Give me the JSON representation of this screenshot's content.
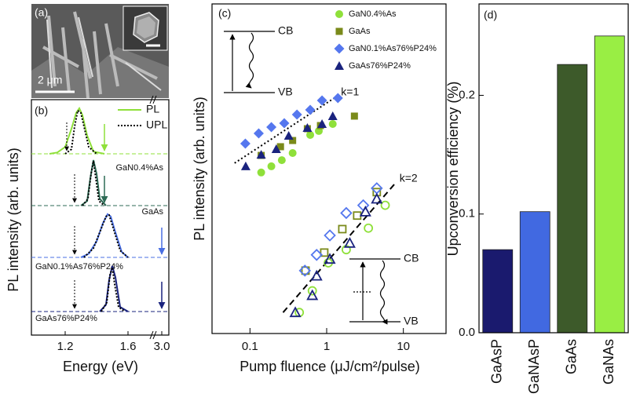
{
  "image": {
    "panel": "(a)",
    "scale": "2 μm"
  },
  "chart_data": [
    {
      "type": "spectra",
      "panel": "(b)",
      "xlabel": "Energy (eV)",
      "ylabel": "PL intensity (arb. units)",
      "xlim": [
        1.0,
        1.75
      ],
      "xlim_break": [
        2.9,
        3.1
      ],
      "xticks": [
        1.2,
        1.6,
        {
          "value": 3,
          "label": "3.0"
        }
      ],
      "legend": [
        {
          "name": "PL",
          "color": "#8fe03a",
          "style": "solid"
        },
        {
          "name": "UPL",
          "color": "#000000",
          "style": "dotted"
        }
      ],
      "samples": [
        {
          "name": "GaN0.4%As",
          "color": "#8fe03a",
          "pl": {
            "x": [
              1.1,
              1.15,
              1.2,
              1.24,
              1.27,
              1.29,
              1.31,
              1.34,
              1.38,
              1.45
            ],
            "values": [
              0,
              0.03,
              0.15,
              0.55,
              0.9,
              1.0,
              0.85,
              0.4,
              0.05,
              0
            ]
          },
          "upl": {
            "x": [
              1.2,
              1.24,
              1.26,
              1.28,
              1.3,
              1.32,
              1.35,
              1.4
            ],
            "values": [
              0,
              0.1,
              0.6,
              0.95,
              0.9,
              0.6,
              0.15,
              0
            ]
          },
          "excitation_upl": 1.21,
          "excitation_pl": 1.45
        },
        {
          "name": "GaAs",
          "color": "#2e6b55",
          "pl": {
            "x": [
              1.3,
              1.34,
              1.36,
              1.38,
              1.4,
              1.42,
              1.46
            ],
            "values": [
              0,
              0.1,
              0.6,
              1.0,
              0.7,
              0.15,
              0
            ]
          },
          "upl": {
            "x": [
              1.31,
              1.345,
              1.365,
              1.38,
              1.395,
              1.415,
              1.45
            ],
            "values": [
              0,
              0.15,
              0.7,
              0.98,
              0.6,
              0.1,
              0
            ]
          },
          "excitation_upl": 1.26,
          "excitation_pl": 1.45
        },
        {
          "name": "GaN0.1%As76%P24%",
          "color": "#4a6fe3",
          "pl": {
            "x": [
              1.3,
              1.35,
              1.4,
              1.44,
              1.47,
              1.49,
              1.52,
              1.56,
              1.6
            ],
            "values": [
              0,
              0.08,
              0.35,
              0.75,
              0.95,
              0.9,
              0.55,
              0.12,
              0
            ]
          },
          "upl": {
            "x": [
              1.32,
              1.38,
              1.42,
              1.46,
              1.48,
              1.51,
              1.55,
              1.6
            ],
            "values": [
              0,
              0.2,
              0.55,
              0.9,
              0.93,
              0.6,
              0.15,
              0
            ]
          },
          "excitation_upl": 1.26,
          "excitation_pl": 3.0
        },
        {
          "name": "GaAs76%P24%",
          "color": "#1a237e",
          "pl": {
            "x": [
              1.42,
              1.46,
              1.48,
              1.5,
              1.52,
              1.55,
              1.6
            ],
            "values": [
              0,
              0.15,
              0.7,
              1.0,
              0.75,
              0.1,
              0
            ]
          },
          "upl": {
            "x": [
              1.43,
              1.465,
              1.485,
              1.5,
              1.515,
              1.54,
              1.58
            ],
            "values": [
              0,
              0.2,
              0.8,
              0.97,
              0.6,
              0.1,
              0
            ]
          },
          "excitation_upl": 1.26,
          "excitation_pl": 3.0
        }
      ]
    },
    {
      "type": "scatter",
      "panel": "(c)",
      "xlabel": "Pump fluence (μJ/cm²/pulse)",
      "ylabel": "PL intensity (arb. units)",
      "xscale": "log",
      "yscale": "log",
      "xlim": [
        0.032,
        36
      ],
      "ylim": [
        1,
        10000
      ],
      "xticks": [
        0.1,
        1,
        10
      ],
      "legend": "upper right",
      "series": [
        {
          "name": "GaN0.4%As",
          "color": "#8fe03a",
          "marker": "circle",
          "open": false,
          "x": [
            0.14,
            0.19,
            0.26,
            0.36,
            0.61,
            0.79,
            1.2
          ],
          "values": [
            90,
            107,
            127,
            155,
            257,
            287,
            349
          ]
        },
        {
          "name": "GaAs",
          "color": "#7a8a1a",
          "marker": "square",
          "open": false,
          "x": [
            0.14,
            0.25,
            0.36,
            0.56,
            0.83,
            2.3
          ],
          "values": [
            145,
            185,
            220,
            306,
            334,
            435
          ]
        },
        {
          "name": "GaN0.1%As76%P24%",
          "color": "#5577ee",
          "marker": "diamond",
          "open": false,
          "x": [
            0.087,
            0.13,
            0.19,
            0.28,
            0.41,
            0.61,
            0.87,
            1.4
          ],
          "values": [
            202,
            268,
            320,
            357,
            454,
            518,
            674,
            720
          ]
        },
        {
          "name": "GaAs76%P24%",
          "color": "#1a237e",
          "marker": "triangle",
          "open": false,
          "x": [
            0.088,
            0.14,
            0.22,
            0.32,
            0.56,
            0.87,
            1.2
          ],
          "values": [
            107,
            148,
            173,
            251,
            313,
            349,
            435
          ]
        },
        {
          "color": "#8fe03a",
          "marker": "circle",
          "open": true,
          "x": [
            0.44,
            0.65,
            1.05,
            1.8,
            3.5,
            5.8
          ],
          "values": [
            1.8,
            3.3,
            7.2,
            10.4,
            19,
            36
          ]
        },
        {
          "color": "#7a8a1a",
          "marker": "square",
          "open": true,
          "x": [
            0.53,
            0.93,
            1.6,
            2.5,
            4.5
          ],
          "values": [
            5.8,
            9.6,
            18.5,
            27,
            52
          ]
        },
        {
          "color": "#5577ee",
          "marker": "diamond",
          "open": true,
          "x": [
            0.52,
            0.74,
            1.1,
            1.8,
            3.0,
            4.5
          ],
          "values": [
            5.8,
            9.0,
            15.5,
            29,
            36,
            58
          ]
        },
        {
          "color": "#1a237e",
          "marker": "triangle",
          "open": true,
          "x": [
            0.39,
            0.65,
            0.74,
            1.1,
            2.0,
            3.2,
            4.5
          ],
          "values": [
            1.8,
            2.9,
            5.0,
            8.0,
            12.5,
            30,
            43
          ]
        }
      ],
      "fits": [
        {
          "label": "k=1",
          "style": "dotted",
          "x": [
            0.063,
            1.4
          ],
          "values": [
            117,
            769
          ]
        },
        {
          "label": "k=2",
          "style": "dashed",
          "x": [
            0.27,
            8.1
          ],
          "values": [
            1.8,
            69
          ]
        }
      ],
      "insets": [
        {
          "upper": "CB",
          "lower": "VB"
        },
        {
          "upper": "CB",
          "lower": "VB"
        }
      ]
    },
    {
      "type": "bar",
      "panel": "(d)",
      "ylabel": "Upconversion efficiency (%)",
      "categories": [
        "GaAsP",
        "GaNAsP",
        "GaAs",
        "GaNAs"
      ],
      "values": [
        0.07,
        0.102,
        0.226,
        0.25
      ],
      "colors": [
        "#1a1a6e",
        "#4169e1",
        "#3d5a2a",
        "#99ee44"
      ],
      "ylim": [
        0,
        0.277
      ],
      "yticks": [
        {
          "value": 0,
          "label": "0.0"
        },
        0.1,
        0.2
      ]
    }
  ]
}
